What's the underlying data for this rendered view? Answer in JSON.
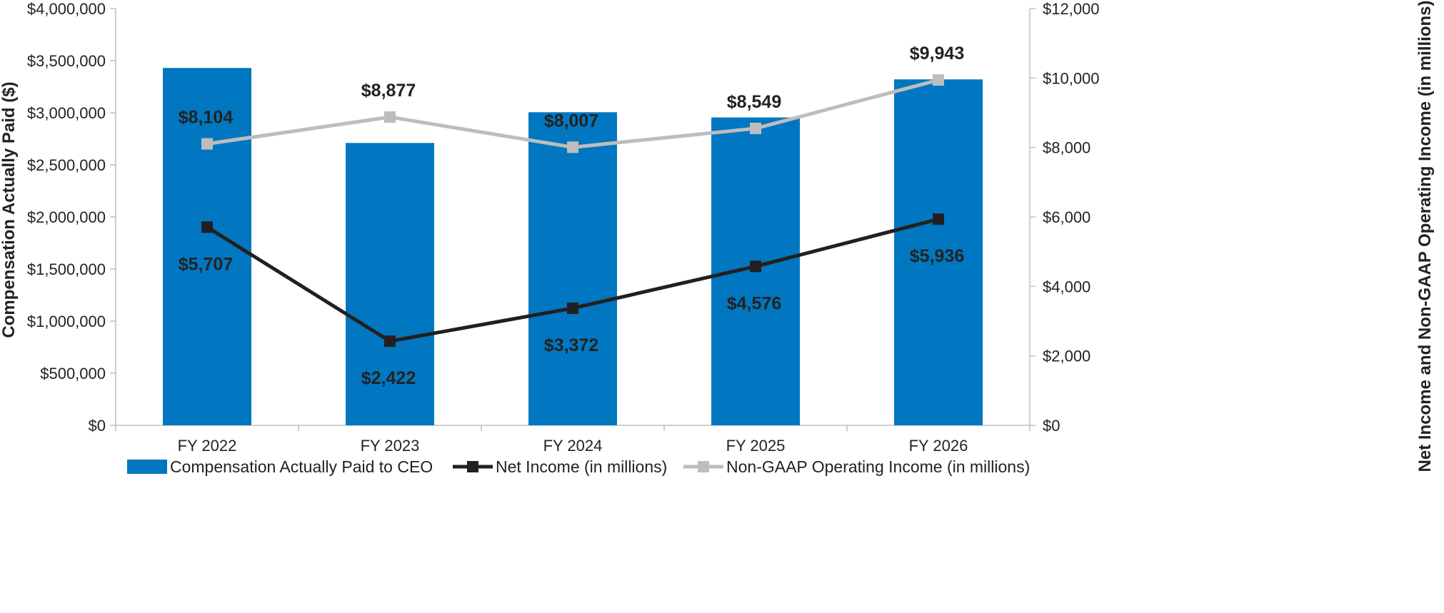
{
  "chart_data": {
    "type": "bar+line",
    "categories": [
      "FY 2022",
      "FY 2023",
      "FY 2024",
      "FY 2025",
      "FY 2026"
    ],
    "bar_series": {
      "name": "Compensation Actually Paid to CEO",
      "values": [
        3430000,
        2710000,
        3005000,
        2955000,
        3320000
      ],
      "color": "#0077C0",
      "axis": "left"
    },
    "line_series": [
      {
        "name": "Net Income (in millions)",
        "values": [
          5707,
          2422,
          3372,
          4576,
          5936
        ],
        "labels": [
          "$5,707",
          "$2,422",
          "$3,372",
          "$4,576",
          "$5,936"
        ],
        "color": "#231F20",
        "axis": "right",
        "label_position": "below"
      },
      {
        "name": "Non-GAAP Operating Income (in millions)",
        "values": [
          8104,
          8877,
          8007,
          8549,
          9943
        ],
        "labels": [
          "$8,104",
          "$8,877",
          "$8,007",
          "$8,549",
          "$9,943"
        ],
        "color": "#BDBDBD",
        "axis": "right",
        "label_position": "above"
      }
    ],
    "left_axis": {
      "label": "Compensation Actually Paid ($)",
      "range": [
        0,
        4000000
      ],
      "ticks": [
        {
          "value": 0,
          "label": "$0"
        },
        {
          "value": 500000,
          "label": "$500,000"
        },
        {
          "value": 1000000,
          "label": "$1,000,000"
        },
        {
          "value": 1500000,
          "label": "$1,500,000"
        },
        {
          "value": 2000000,
          "label": "$2,000,000"
        },
        {
          "value": 2500000,
          "label": "$2,500,000"
        },
        {
          "value": 3000000,
          "label": "$3,000,000"
        },
        {
          "value": 3500000,
          "label": "$3,500,000"
        },
        {
          "value": 4000000,
          "label": "$4,000,000"
        }
      ]
    },
    "right_axis": {
      "label": "Net Income and Non-GAAP Operating Income (in millions)",
      "range": [
        0,
        12000
      ],
      "ticks": [
        {
          "value": 0,
          "label": "$0"
        },
        {
          "value": 2000,
          "label": "$2,000"
        },
        {
          "value": 4000,
          "label": "$4,000"
        },
        {
          "value": 6000,
          "label": "$6,000"
        },
        {
          "value": 8000,
          "label": "$8,000"
        },
        {
          "value": 10000,
          "label": "$10,000"
        },
        {
          "value": 12000,
          "label": "$12,000"
        }
      ]
    },
    "grid": false,
    "legend_position": "bottom"
  }
}
